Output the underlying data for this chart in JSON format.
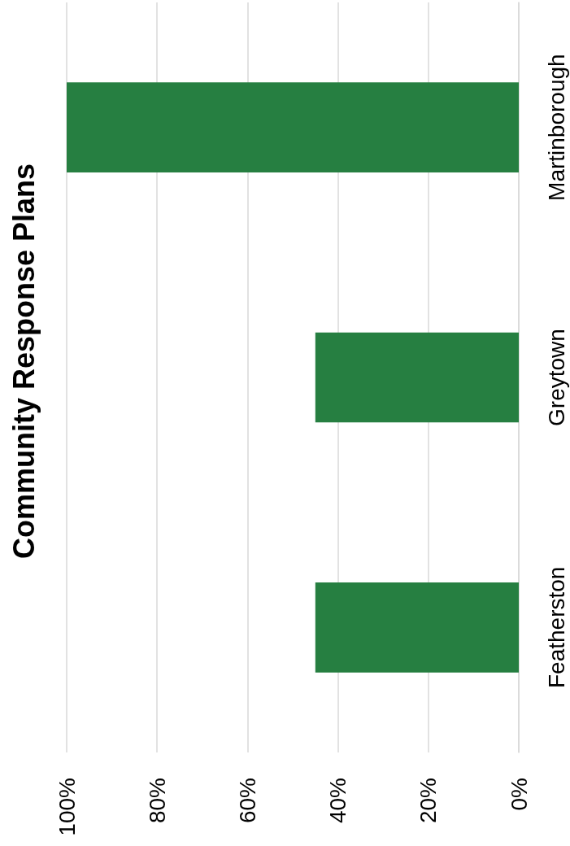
{
  "chart_data": {
    "type": "bar",
    "title": "Community Response Plans",
    "orientation": "horizontal",
    "categories": [
      "Martinborough",
      "Greytown",
      "Featherston"
    ],
    "values": [
      100,
      45,
      45
    ],
    "color": "#267f41",
    "xlim": [
      100,
      0
    ],
    "xticks": [
      {
        "value": 100,
        "label": "100%"
      },
      {
        "value": 80,
        "label": "80%"
      },
      {
        "value": 60,
        "label": "60%"
      },
      {
        "value": 40,
        "label": "40%"
      },
      {
        "value": 20,
        "label": "20%"
      },
      {
        "value": 0,
        "label": "0%"
      }
    ],
    "grid": "x"
  }
}
